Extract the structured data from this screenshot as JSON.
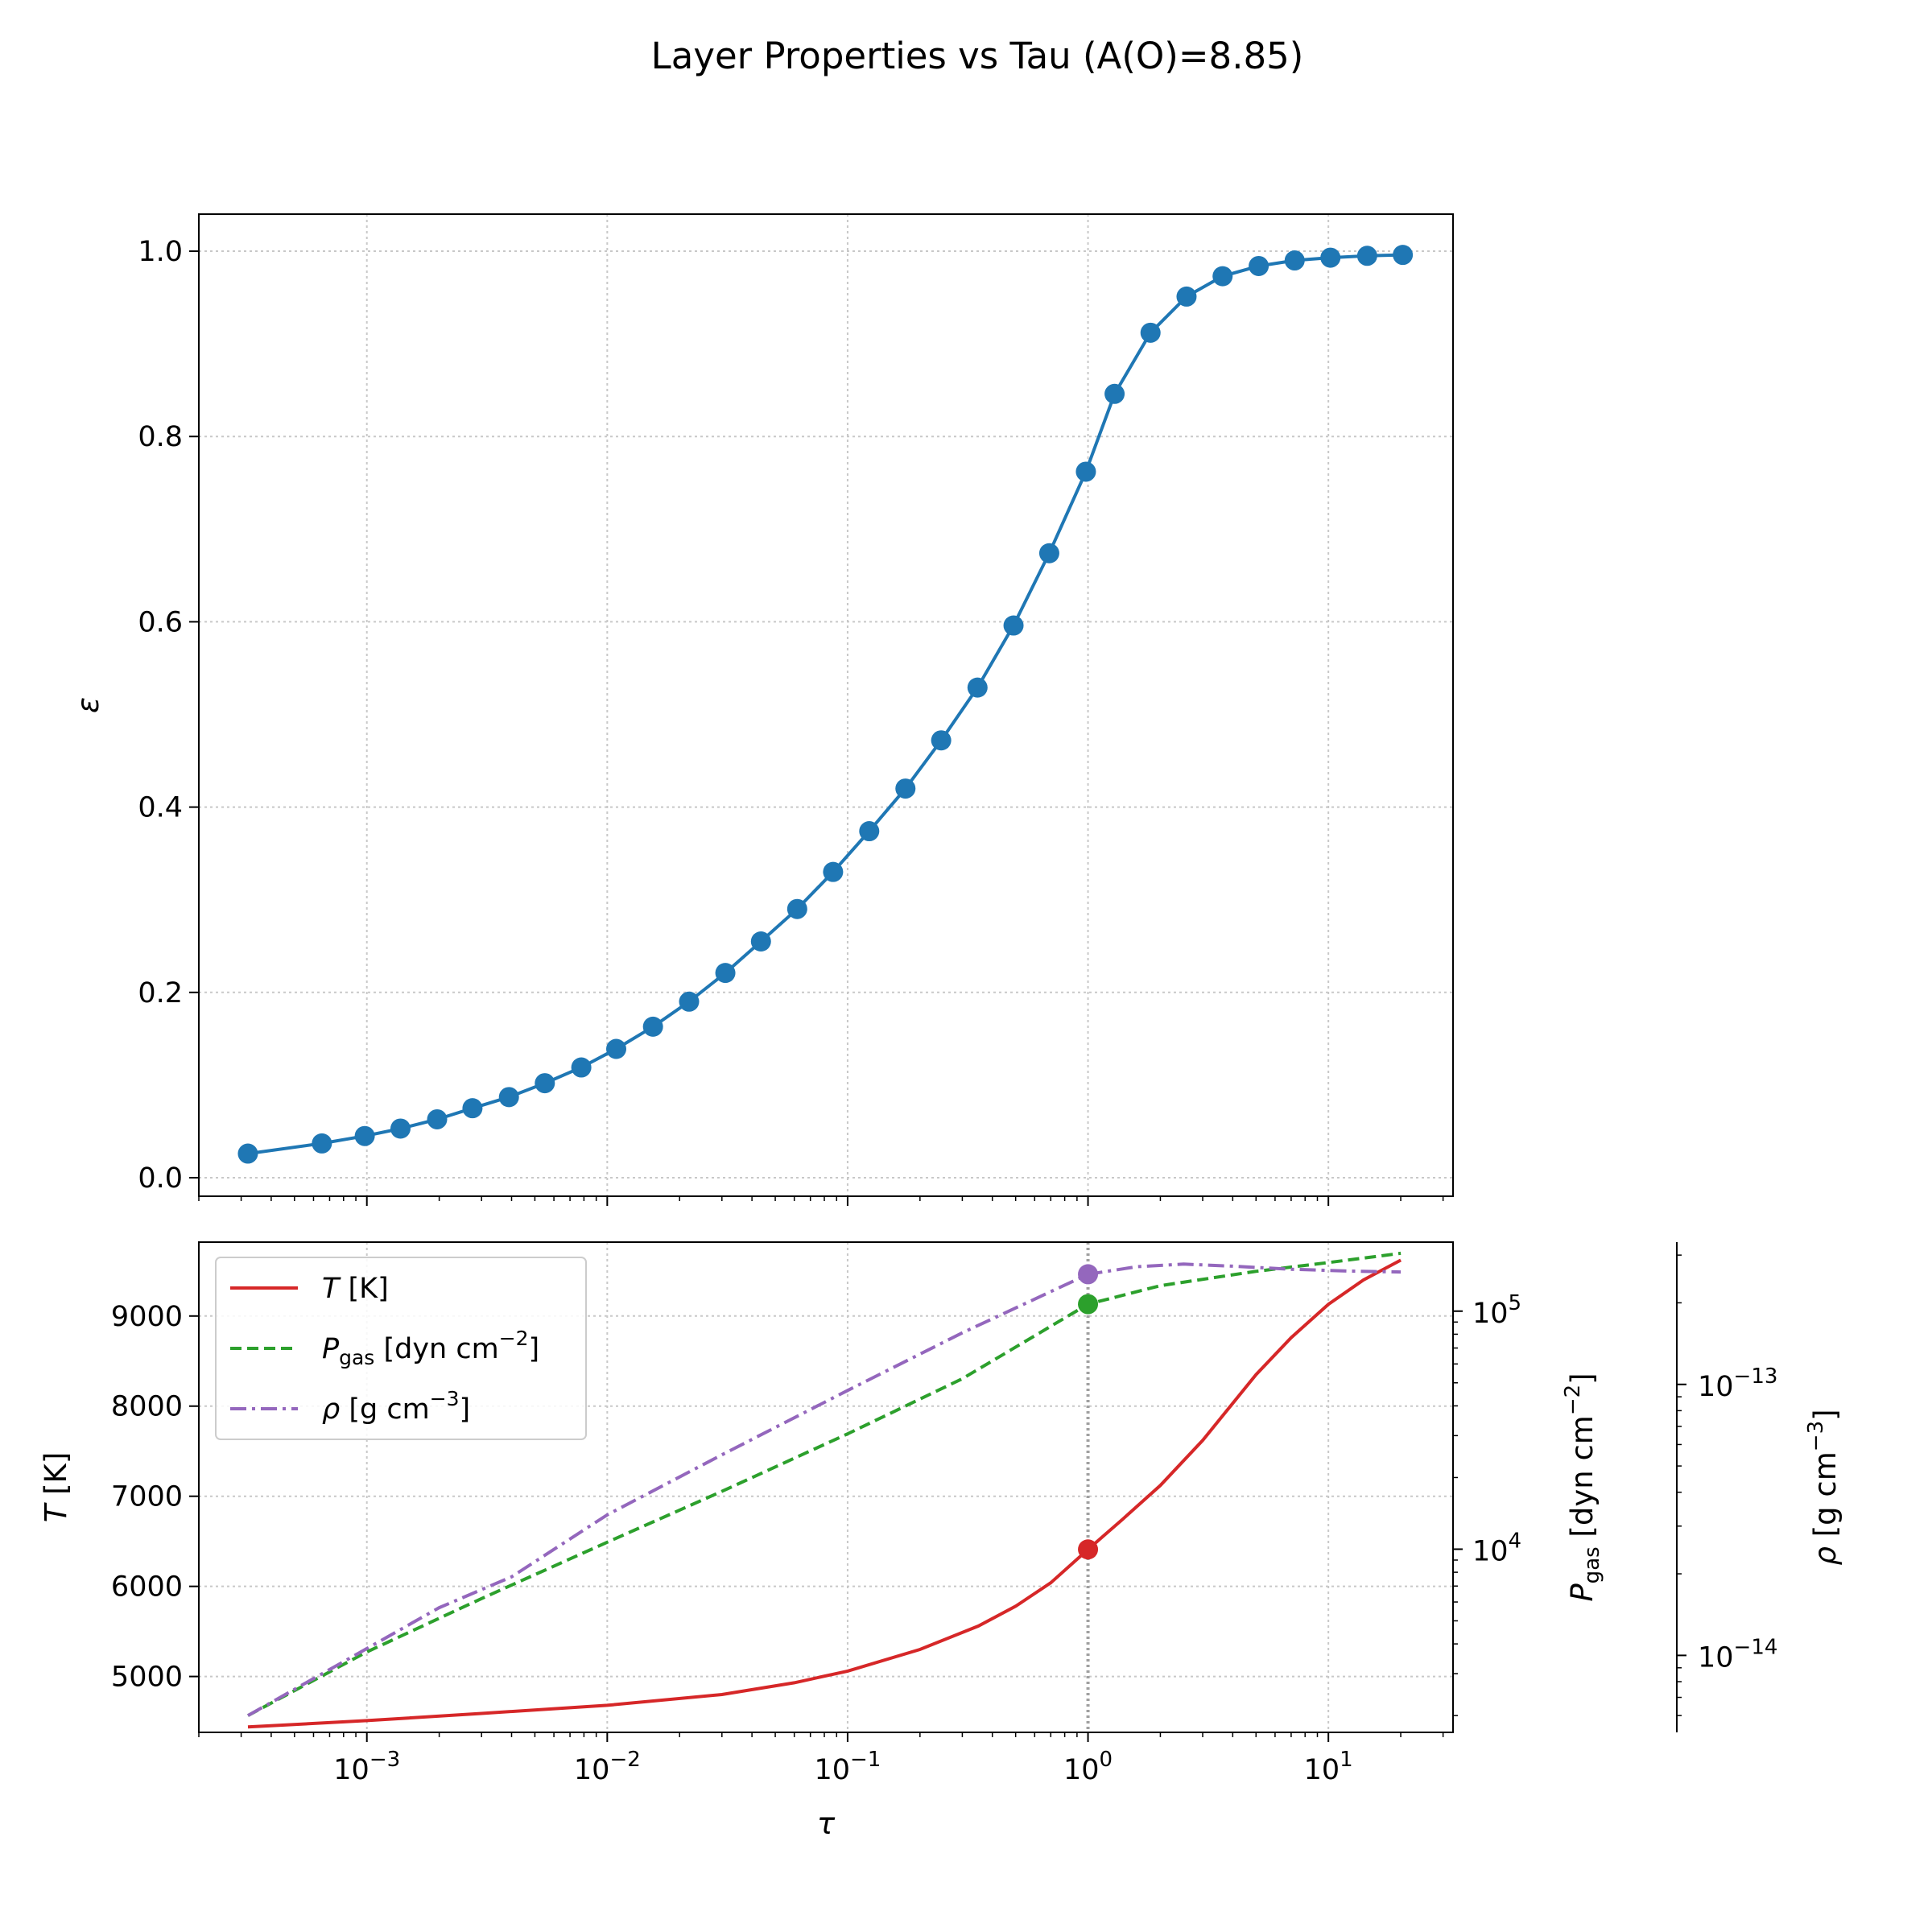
{
  "title": "Layer Properties vs Tau (A(O)=8.85)",
  "chart_data": [
    {
      "type": "line",
      "panel": "top",
      "title": "",
      "xlabel": "",
      "ylabel": "ε",
      "xscale": "log",
      "xlim": [
        0.0002,
        33
      ],
      "ylim": [
        -0.02,
        1.04
      ],
      "yticks": [
        0.0,
        0.2,
        0.4,
        0.6,
        0.8,
        1.0
      ],
      "ytick_labels": [
        "0.0",
        "0.2",
        "0.4",
        "0.6",
        "0.8",
        "1.0"
      ],
      "grid": true,
      "series": [
        {
          "color": "#1f77b4",
          "marker": "circle",
          "x": [
            0.00032,
            0.00065,
            0.00098,
            0.00138,
            0.00196,
            0.00275,
            0.0039,
            0.0055,
            0.0078,
            0.0109,
            0.0155,
            0.0219,
            0.031,
            0.0436,
            0.0617,
            0.087,
            0.123,
            0.174,
            0.245,
            0.347,
            0.49,
            0.69,
            0.98,
            1.29,
            1.82,
            2.57,
            3.63,
            5.13,
            7.24,
            10.2,
            14.5,
            20.4
          ],
          "y": [
            0.026,
            0.037,
            0.045,
            0.053,
            0.063,
            0.075,
            0.087,
            0.102,
            0.119,
            0.139,
            0.163,
            0.19,
            0.221,
            0.255,
            0.29,
            0.33,
            0.374,
            0.42,
            0.472,
            0.529,
            0.596,
            0.674,
            0.762,
            0.846,
            0.912,
            0.951,
            0.973,
            0.984,
            0.99,
            0.993,
            0.995,
            0.996
          ]
        }
      ]
    },
    {
      "type": "line",
      "panel": "bottom",
      "title": "",
      "xlabel": "τ",
      "ylabel": "T [K]",
      "ylabel_right": "P_gas [dyn cm^-2]",
      "ylabel_right2": "ρ [g cm^-3]",
      "xscale": "log",
      "xlim": [
        0.0002,
        33
      ],
      "xticks": [
        0.001,
        0.01,
        0.1,
        1,
        10
      ],
      "xtick_labels": [
        {
          "base": "10",
          "exp": "−3"
        },
        {
          "base": "10",
          "exp": "−2"
        },
        {
          "base": "10",
          "exp": "−1"
        },
        {
          "base": "10",
          "exp": "0"
        },
        {
          "base": "10",
          "exp": "1"
        }
      ],
      "ylim": [
        4380,
        9820
      ],
      "yticks": [
        5000,
        6000,
        7000,
        8000,
        9000
      ],
      "ytick_labels": [
        "5000",
        "6000",
        "7000",
        "8000",
        "9000"
      ],
      "y2scale": "log",
      "y2lim": [
        1700,
        195000
      ],
      "y2ticks": [
        10000,
        100000
      ],
      "y2tick_labels": [
        {
          "base": "10",
          "exp": "4"
        },
        {
          "base": "10",
          "exp": "5"
        }
      ],
      "y3scale": "log",
      "y3lim": [
        5.2e-15,
        3.35e-13
      ],
      "y3ticks": [
        1e-14,
        1e-13
      ],
      "y3tick_labels": [
        {
          "base": "10",
          "exp": "−14"
        },
        {
          "base": "10",
          "exp": "−13"
        }
      ],
      "grid": true,
      "vline_x": 1.0,
      "legend": {
        "position": "top-left",
        "entries": [
          {
            "label_main": "T",
            "label_sub": "",
            "label_rest": " [K]",
            "sup": "",
            "color": "#d62728",
            "style": "solid"
          },
          {
            "label_main": "P",
            "label_sub": "gas",
            "label_rest": " [dyn cm",
            "sup": "−2",
            "tail": "]",
            "color": "#2ca02c",
            "style": "dashed"
          },
          {
            "label_main": "ρ",
            "label_sub": "",
            "label_rest": " [g cm",
            "sup": "−3",
            "tail": "]",
            "color": "#9467bd",
            "style": "dashdot"
          }
        ]
      },
      "series": [
        {
          "name": "T [K]",
          "axis": "left",
          "color": "#d62728",
          "style": "solid",
          "x": [
            0.00032,
            0.001,
            0.003,
            0.01,
            0.03,
            0.06,
            0.1,
            0.2,
            0.35,
            0.5,
            0.7,
            1.0,
            1.4,
            2.0,
            3.0,
            5.0,
            7.0,
            10.0,
            14.0,
            20.0
          ],
          "y": [
            4440,
            4510,
            4590,
            4680,
            4800,
            4930,
            5060,
            5300,
            5560,
            5780,
            6040,
            6410,
            6750,
            7120,
            7620,
            8350,
            8760,
            9130,
            9400,
            9620
          ],
          "marker_at": {
            "x": 1.0,
            "y": 6410
          }
        },
        {
          "name": "P_gas [dyn cm^-2]",
          "axis": "right",
          "color": "#2ca02c",
          "style": "dashed",
          "x": [
            0.00032,
            0.001,
            0.003,
            0.01,
            0.03,
            0.1,
            0.3,
            1.0,
            2.0,
            5.0,
            10.0,
            20.0
          ],
          "y": [
            2000,
            3700,
            6200,
            10700,
            17500,
            30500,
            52000,
            107000,
            128000,
            147000,
            160000,
            175000
          ],
          "marker_at": {
            "x": 1.0,
            "y": 107000
          }
        },
        {
          "name": "ρ [g cm^-3]",
          "axis": "right2",
          "color": "#9467bd",
          "style": "dashdot",
          "x": [
            0.00032,
            0.001,
            0.002,
            0.004,
            0.01,
            0.03,
            0.1,
            0.3,
            1.0,
            1.6,
            2.5,
            4.0,
            7.0,
            12.0,
            20.0
          ],
          "y": [
            6e-15,
            1.06e-14,
            1.5e-14,
            1.95e-14,
            3.3e-14,
            5.5e-14,
            9.5e-14,
            1.55e-13,
            2.55e-13,
            2.72e-13,
            2.78e-13,
            2.73e-13,
            2.66e-13,
            2.62e-13,
            2.6e-13
          ],
          "marker_at": {
            "x": 1.0,
            "y": 2.55e-13
          }
        }
      ]
    }
  ]
}
